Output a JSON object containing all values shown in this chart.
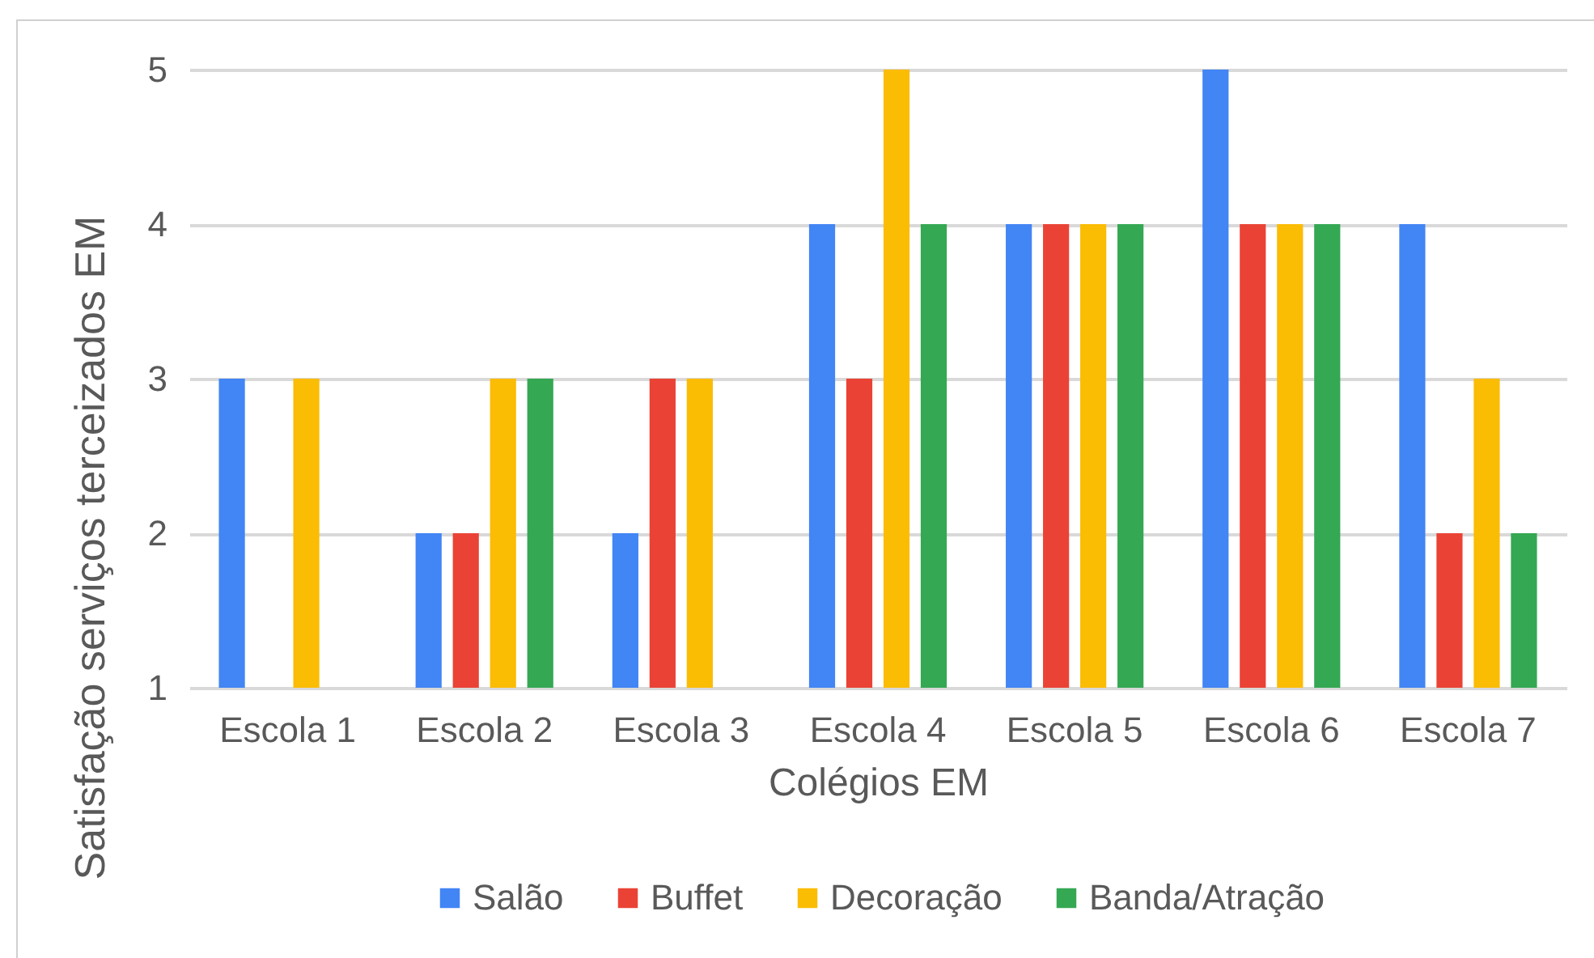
{
  "chart_data": {
    "type": "bar",
    "categories": [
      "Escola 1",
      "Escola 2",
      "Escola 3",
      "Escola 4",
      "Escola 5",
      "Escola 6",
      "Escola 7"
    ],
    "series": [
      {
        "name": "Salão",
        "color": "#4285f4",
        "values": [
          3,
          2,
          2,
          4,
          4,
          5,
          4
        ]
      },
      {
        "name": "Buffet",
        "color": "#ea4335",
        "values": [
          null,
          2,
          3,
          3,
          4,
          4,
          2
        ]
      },
      {
        "name": "Decoração",
        "color": "#fbbc04",
        "values": [
          3,
          3,
          3,
          5,
          4,
          4,
          3
        ]
      },
      {
        "name": "Banda/Atração",
        "color": "#34a853",
        "values": [
          null,
          3,
          null,
          4,
          4,
          4,
          2
        ]
      }
    ],
    "xlabel": "Colégios EM",
    "ylabel": "Satisfação serviços terceizados EM",
    "ylim": [
      1,
      5
    ],
    "yticks": [
      1,
      2,
      3,
      4,
      5
    ],
    "grid": "y",
    "legend": "bottom"
  }
}
